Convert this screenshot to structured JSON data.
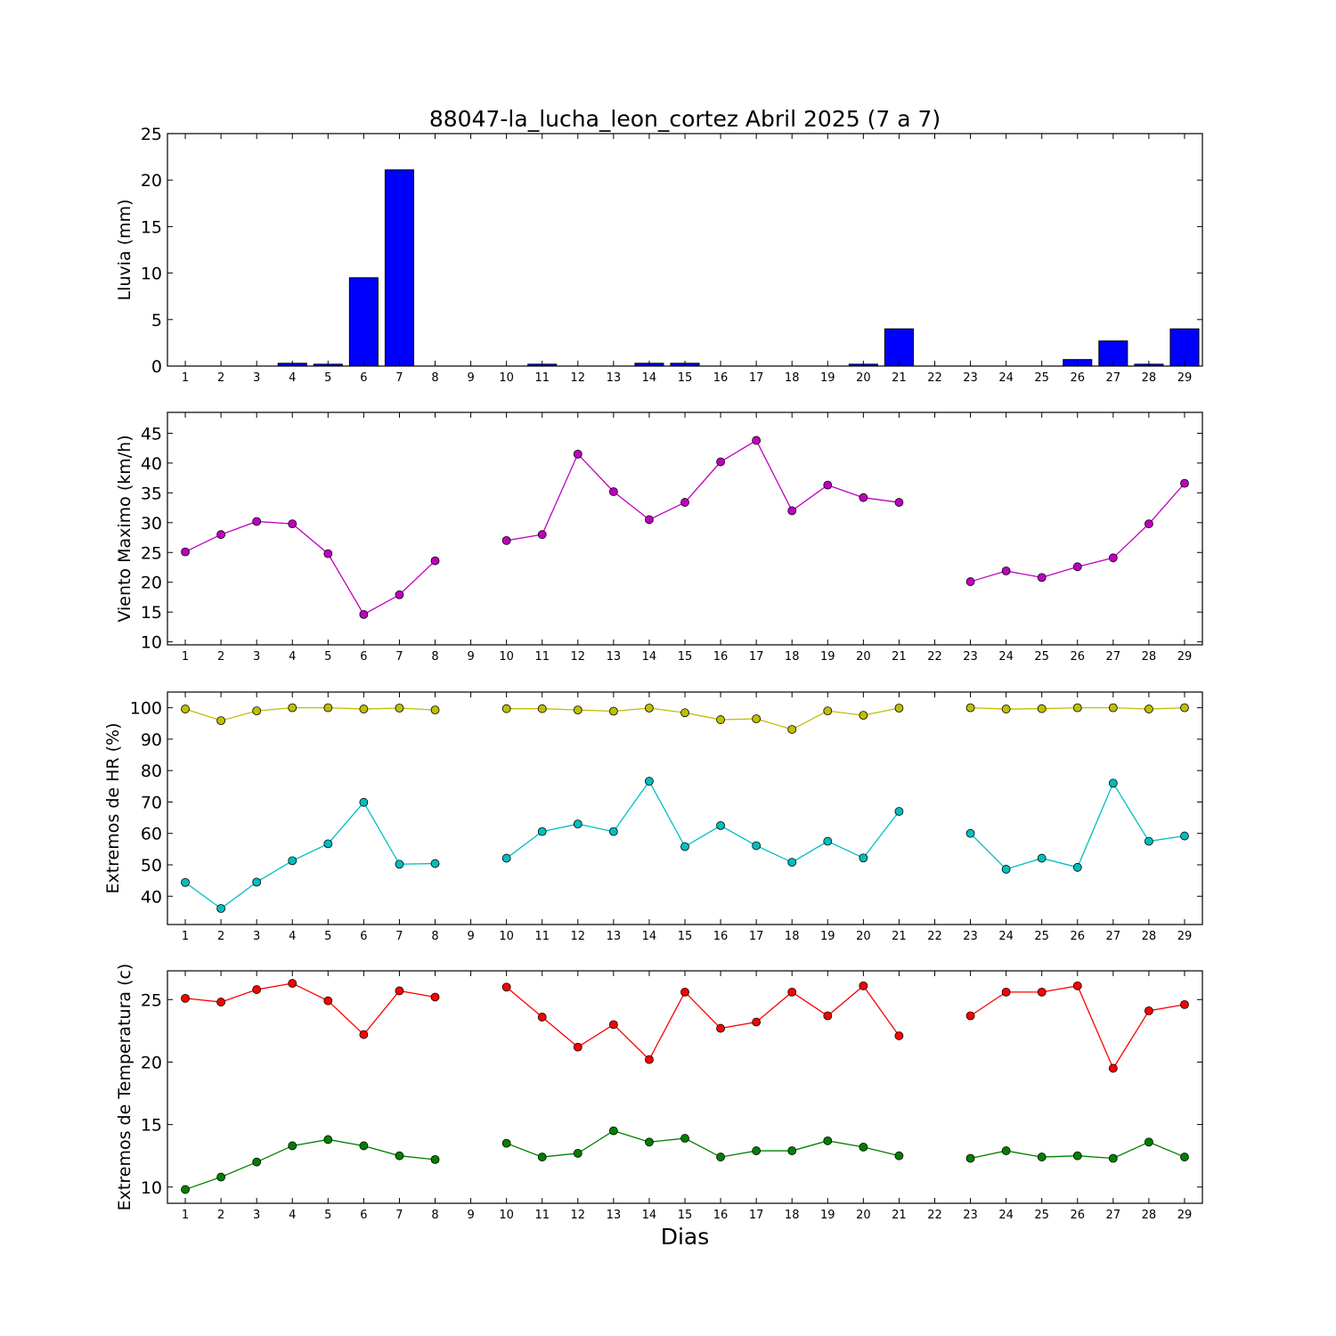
{
  "figure": {
    "title": "88047-la_lucha_leon_cortez Abril 2025  (7 a 7)",
    "xlabel": "Dias"
  },
  "chart_data": [
    {
      "type": "bar",
      "ylabel": "Lluvia (mm)",
      "ylim": [
        0,
        25
      ],
      "yticks": [
        0,
        5,
        10,
        15,
        20,
        25
      ],
      "xticks": [
        1,
        2,
        3,
        4,
        5,
        6,
        7,
        8,
        9,
        10,
        11,
        12,
        13,
        14,
        15,
        16,
        17,
        18,
        19,
        20,
        21,
        22,
        23,
        24,
        25,
        26,
        27,
        28,
        29
      ],
      "color": "#0000ff",
      "x": [
        1,
        2,
        3,
        4,
        5,
        6,
        7,
        8,
        9,
        10,
        11,
        12,
        13,
        14,
        15,
        16,
        17,
        18,
        19,
        20,
        21,
        22,
        23,
        24,
        25,
        26,
        27,
        28,
        29
      ],
      "values": [
        0,
        0,
        0,
        0.3,
        0.2,
        9.5,
        21.1,
        0,
        0,
        0,
        0.2,
        0,
        0,
        0.3,
        0.3,
        0,
        0,
        0,
        0,
        0.2,
        4.0,
        0,
        0,
        0,
        0,
        0.7,
        2.7,
        0.2,
        4.0
      ]
    },
    {
      "type": "line",
      "ylabel": "Viento Maximo (km/h)",
      "ylim": [
        9.5,
        48.5
      ],
      "yticks": [
        10,
        15,
        20,
        25,
        30,
        35,
        40,
        45
      ],
      "xticks": [
        1,
        2,
        3,
        4,
        5,
        6,
        7,
        8,
        9,
        10,
        11,
        12,
        13,
        14,
        15,
        16,
        17,
        18,
        19,
        20,
        21,
        22,
        23,
        24,
        25,
        26,
        27,
        28,
        29
      ],
      "series": [
        {
          "color": "#bf00bf",
          "x": [
            1,
            2,
            3,
            4,
            5,
            6,
            7,
            8,
            9,
            10,
            11,
            12,
            13,
            14,
            15,
            16,
            17,
            18,
            19,
            20,
            21,
            22,
            23,
            24,
            25,
            26,
            27,
            28,
            29
          ],
          "values": [
            25.1,
            28.0,
            30.2,
            29.8,
            24.8,
            14.6,
            17.9,
            23.6,
            null,
            27.0,
            28.0,
            41.5,
            35.2,
            30.5,
            33.4,
            40.2,
            43.8,
            32.0,
            36.3,
            34.2,
            33.4,
            null,
            20.1,
            21.9,
            20.8,
            22.6,
            24.1,
            29.8,
            36.6
          ]
        }
      ]
    },
    {
      "type": "line",
      "ylabel": "Extremos de HR (%)",
      "ylim": [
        31,
        105
      ],
      "yticks": [
        40,
        50,
        60,
        70,
        80,
        90,
        100
      ],
      "xticks": [
        1,
        2,
        3,
        4,
        5,
        6,
        7,
        8,
        9,
        10,
        11,
        12,
        13,
        14,
        15,
        16,
        17,
        18,
        19,
        20,
        21,
        22,
        23,
        24,
        25,
        26,
        27,
        28,
        29
      ],
      "series": [
        {
          "color": "#bfbf00",
          "x": [
            1,
            2,
            3,
            4,
            5,
            6,
            7,
            8,
            9,
            10,
            11,
            12,
            13,
            14,
            15,
            16,
            17,
            18,
            19,
            20,
            21,
            22,
            23,
            24,
            25,
            26,
            27,
            28,
            29
          ],
          "values": [
            99.6,
            95.9,
            99.0,
            100,
            100,
            99.6,
            99.9,
            99.3,
            null,
            99.7,
            99.7,
            99.3,
            98.9,
            99.9,
            98.4,
            96.2,
            96.5,
            93.1,
            99.0,
            97.6,
            99.9,
            null,
            100,
            99.6,
            99.7,
            100,
            100,
            99.6,
            100
          ]
        },
        {
          "color": "#00bfbf",
          "x": [
            1,
            2,
            3,
            4,
            5,
            6,
            7,
            8,
            9,
            10,
            11,
            12,
            13,
            14,
            15,
            16,
            17,
            18,
            19,
            20,
            21,
            22,
            23,
            24,
            25,
            26,
            27,
            28,
            29
          ],
          "values": [
            44.4,
            36.1,
            44.5,
            51.3,
            56.7,
            69.9,
            50.2,
            50.4,
            null,
            52.1,
            60.6,
            63.0,
            60.6,
            76.6,
            55.8,
            62.5,
            56.1,
            50.8,
            57.5,
            52.2,
            67.0,
            null,
            60.0,
            48.6,
            52.1,
            49.2,
            76.0,
            57.5,
            59.2
          ]
        }
      ]
    },
    {
      "type": "line",
      "ylabel": "Extremos de Temperatura (c)",
      "ylim": [
        8.7,
        27.3
      ],
      "yticks": [
        10,
        15,
        20,
        25
      ],
      "xticks": [
        1,
        2,
        3,
        4,
        5,
        6,
        7,
        8,
        9,
        10,
        11,
        12,
        13,
        14,
        15,
        16,
        17,
        18,
        19,
        20,
        21,
        22,
        23,
        24,
        25,
        26,
        27,
        28,
        29
      ],
      "series": [
        {
          "color": "#ff0000",
          "x": [
            1,
            2,
            3,
            4,
            5,
            6,
            7,
            8,
            9,
            10,
            11,
            12,
            13,
            14,
            15,
            16,
            17,
            18,
            19,
            20,
            21,
            22,
            23,
            24,
            25,
            26,
            27,
            28,
            29
          ],
          "values": [
            25.1,
            24.8,
            25.8,
            26.3,
            24.9,
            22.2,
            25.7,
            25.2,
            null,
            26.0,
            23.6,
            21.2,
            23.0,
            20.2,
            25.6,
            22.7,
            23.2,
            25.6,
            23.7,
            26.1,
            22.1,
            null,
            23.7,
            25.6,
            25.6,
            26.1,
            19.5,
            24.1,
            24.6
          ]
        },
        {
          "color": "#008000",
          "x": [
            1,
            2,
            3,
            4,
            5,
            6,
            7,
            8,
            9,
            10,
            11,
            12,
            13,
            14,
            15,
            16,
            17,
            18,
            19,
            20,
            21,
            22,
            23,
            24,
            25,
            26,
            27,
            28,
            29
          ],
          "values": [
            9.8,
            10.8,
            12.0,
            13.3,
            13.8,
            13.3,
            12.5,
            12.2,
            null,
            13.5,
            12.4,
            12.7,
            14.5,
            13.6,
            13.9,
            12.4,
            12.9,
            12.9,
            13.7,
            13.2,
            12.5,
            null,
            12.3,
            12.9,
            12.4,
            12.5,
            12.3,
            13.6,
            12.4
          ]
        }
      ]
    }
  ]
}
